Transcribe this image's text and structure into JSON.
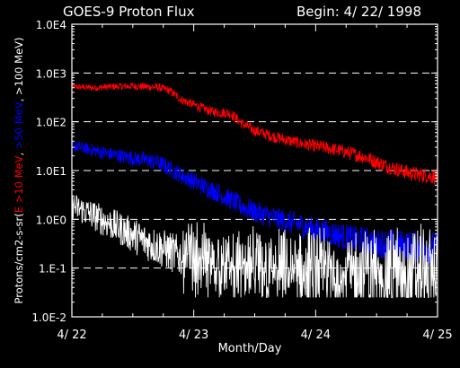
{
  "chart_data": {
    "type": "line",
    "title": "GOES-9 Proton Flux",
    "subtitle": "Begin: 4/ 22/ 1998",
    "xlabel": "Month/Day",
    "ylabel_prefix": "Protons/cm2-s-sr(",
    "ylabel_parts": [
      {
        "text": "E >10 MeV",
        "color": "#ff0000"
      },
      {
        "text": ", ",
        "color": "#ffffff"
      },
      {
        "text": ">50 MeV",
        "color": "#0000ff"
      },
      {
        "text": ", >100 MeV",
        "color": "#ffffff"
      },
      {
        "text": ")",
        "color": "#ffffff"
      }
    ],
    "x_tick_labels": [
      "4/ 22",
      "4/ 23",
      "4/ 24",
      "4/ 25"
    ],
    "xlim_days": [
      0,
      3
    ],
    "y_scale": "log",
    "ylim": [
      0.01,
      10000
    ],
    "y_tick_labels": [
      "1.0E-2",
      "1.E-1",
      "1.0E0",
      "1.0E1",
      "1.0E2",
      "1.0E3",
      "1.0E4"
    ],
    "y_tick_values": [
      0.01,
      0.1,
      1,
      10,
      100,
      1000,
      10000
    ],
    "grid": "dashed horizontal",
    "series": [
      {
        "name": "E >10 MeV",
        "color": "#ff0000",
        "noise": 0.06,
        "points": [
          [
            0,
            520
          ],
          [
            0.2,
            500
          ],
          [
            0.3,
            520
          ],
          [
            0.5,
            540
          ],
          [
            0.7,
            510
          ],
          [
            0.8,
            440
          ],
          [
            0.9,
            280
          ],
          [
            1.05,
            200
          ],
          [
            1.15,
            160
          ],
          [
            1.3,
            150
          ],
          [
            1.4,
            90
          ],
          [
            1.5,
            66
          ],
          [
            1.65,
            50
          ],
          [
            1.8,
            40
          ],
          [
            1.95,
            33
          ],
          [
            2.1,
            29
          ],
          [
            2.25,
            24
          ],
          [
            2.4,
            19
          ],
          [
            2.5,
            15
          ],
          [
            2.6,
            12
          ],
          [
            2.7,
            10
          ],
          [
            2.8,
            8.5
          ],
          [
            2.9,
            8
          ],
          [
            3.0,
            7.5
          ]
        ]
      },
      {
        "name": ">50 MeV",
        "color": "#0000ff",
        "noise": 0.12,
        "points": [
          [
            0,
            32
          ],
          [
            0.15,
            27
          ],
          [
            0.3,
            22
          ],
          [
            0.5,
            18
          ],
          [
            0.7,
            15
          ],
          [
            0.8,
            11
          ],
          [
            0.9,
            8
          ],
          [
            1.0,
            6
          ],
          [
            1.1,
            4.5
          ],
          [
            1.2,
            3.5
          ],
          [
            1.3,
            2.5
          ],
          [
            1.4,
            1.8
          ],
          [
            1.55,
            1.3
          ],
          [
            1.7,
            1.0
          ],
          [
            1.85,
            0.8
          ],
          [
            2.0,
            0.6
          ],
          [
            2.15,
            0.5
          ],
          [
            2.3,
            0.4
          ],
          [
            2.5,
            0.33
          ],
          [
            2.7,
            0.3
          ],
          [
            3.0,
            0.25
          ]
        ]
      },
      {
        "name": ">100 MeV",
        "color": "#ffffff",
        "noise": 0.28,
        "points": [
          [
            0,
            1.9
          ],
          [
            0.15,
            1.3
          ],
          [
            0.3,
            0.85
          ],
          [
            0.45,
            0.55
          ],
          [
            0.6,
            0.35
          ],
          [
            0.8,
            0.22
          ],
          [
            0.95,
            0.15
          ],
          [
            1.1,
            0.11
          ],
          [
            1.3,
            0.08
          ],
          [
            1.6,
            0.07
          ],
          [
            2.0,
            0.065
          ],
          [
            3.0,
            0.06
          ]
        ]
      }
    ]
  }
}
